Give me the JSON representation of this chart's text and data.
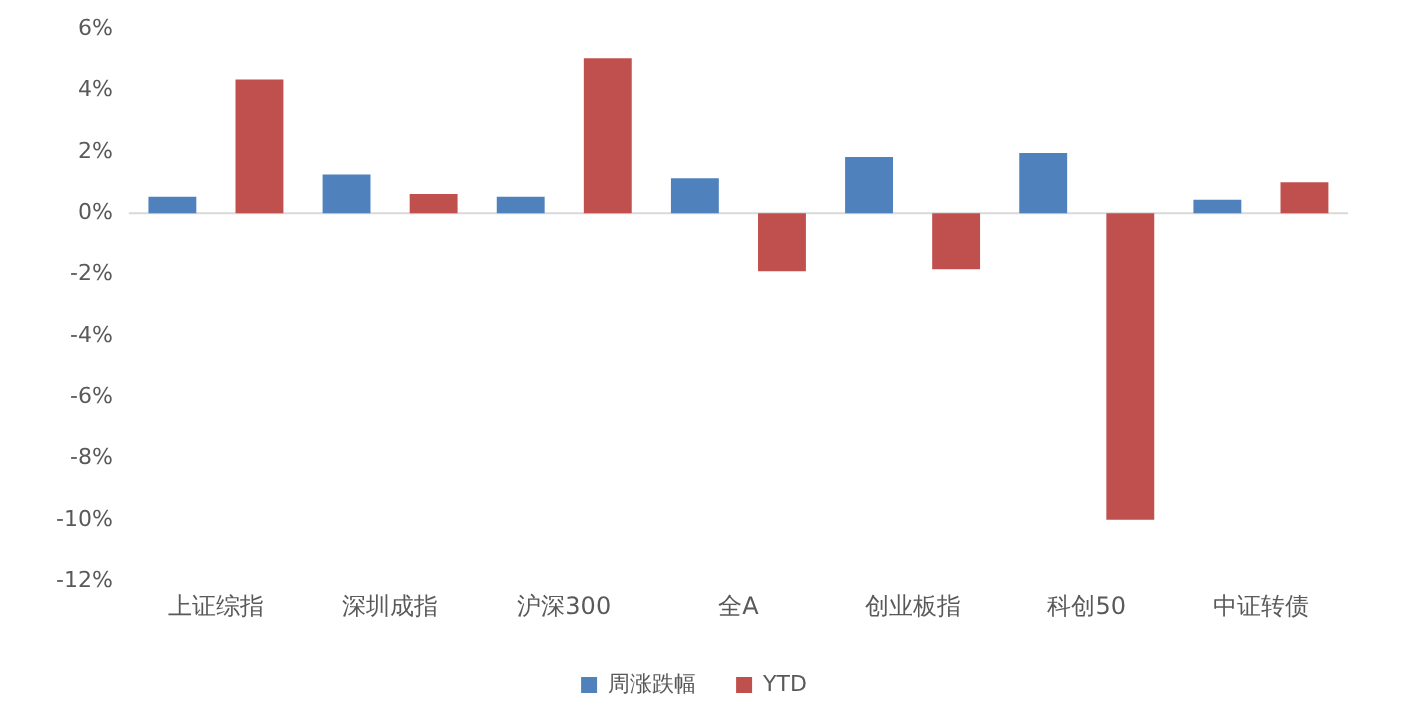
{
  "chart_data": {
    "type": "bar",
    "categories": [
      "上证综指",
      "深圳成指",
      "沪深300",
      "全A",
      "创业板指",
      "科创50",
      "中证转债"
    ],
    "series": [
      {
        "name": "周涨跌幅",
        "color": "#4f81bd",
        "values": [
          0.54,
          1.26,
          0.54,
          1.14,
          1.83,
          1.96,
          0.44
        ]
      },
      {
        "name": "YTD",
        "color": "#c0504d",
        "values": [
          4.36,
          0.63,
          5.05,
          -1.89,
          -1.83,
          -10.0,
          1.01
        ]
      }
    ],
    "ylim": [
      -12,
      6
    ],
    "yticks": [
      {
        "value": -12,
        "label": "-12%"
      },
      {
        "value": -10,
        "label": "-10%"
      },
      {
        "value": -8,
        "label": "-8%"
      },
      {
        "value": -6,
        "label": "-6%"
      },
      {
        "value": -4,
        "label": "-4%"
      },
      {
        "value": -2,
        "label": "-2%"
      },
      {
        "value": 0,
        "label": "0%"
      },
      {
        "value": 2,
        "label": "2%"
      },
      {
        "value": 4,
        "label": "4%"
      },
      {
        "value": 6,
        "label": "6%"
      }
    ],
    "ref_lines": [
      {
        "axis": "y",
        "value": 0,
        "color": "#d9d9d9"
      }
    ],
    "grid": false,
    "legend": "bottom"
  }
}
